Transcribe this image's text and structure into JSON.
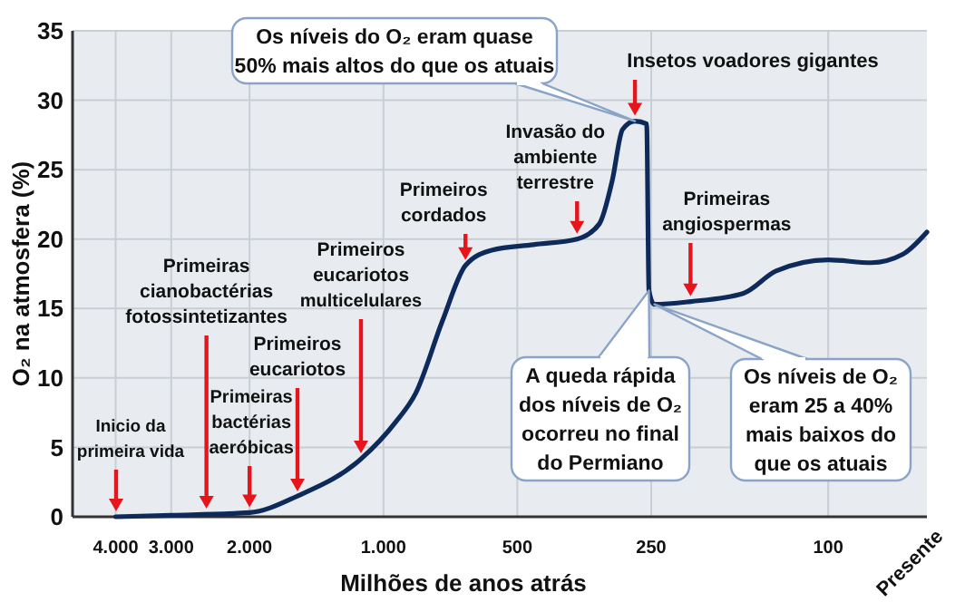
{
  "chart_data": {
    "type": "line",
    "xlabel": "Milhões de anos atrás",
    "ylabel": "O₂ na atmosfera (%)",
    "log": "x",
    "xlim": [
      5000,
      60
    ],
    "xticks": [
      {
        "value": 4000,
        "label": "4.000"
      },
      {
        "value": 3000,
        "label": "3.000"
      },
      {
        "value": 2000,
        "label": "2.000"
      },
      {
        "value": 1000,
        "label": "1.000"
      },
      500,
      250,
      100
    ],
    "ylim": [
      0,
      35
    ],
    "yticks": [
      0,
      5,
      10,
      15,
      20,
      25,
      30,
      35
    ],
    "grid": true,
    "series": [
      {
        "color": "#0e2a5a",
        "x": [
          4000,
          3000,
          2000,
          1560,
          1120,
          940,
          846,
          737,
          654,
          571,
          460,
          367,
          327,
          306,
          290,
          272,
          256,
          253,
          246,
          204,
          155,
          131,
          100,
          80,
          68,
          60
        ],
        "values": [
          0,
          0.1,
          0.3,
          1.5,
          4.2,
          6.8,
          8.9,
          14.1,
          18.1,
          19.2,
          19.6,
          20.0,
          21.1,
          24.2,
          27.9,
          28.5,
          28.3,
          16.3,
          15.3,
          15.5,
          16.1,
          17.7,
          18.5,
          18.3,
          18.9,
          20.5
        ]
      }
    ],
    "annotations": [
      "Inicio da\nprimeira vida",
      {
        "text": "Primeiras\ncianobactérias\nfotossintetizantes",
        "x": 2500,
        "y": 0.2
      },
      {
        "text": "Primeiras\nbactérias\naeróbicas",
        "x": 2000,
        "y": 0.3
      },
      "Primeiros\neucariotos",
      "Primeiros\neucariotos\nmulticelulares",
      {
        "text": "Primeiros\ncordados",
        "x": 654,
        "y": 18.1
      },
      {
        "text": "Invasão do\nambiente\nterrestre",
        "x": 367,
        "y": 20.0
      },
      {
        "text": "Insetos voadores gigantes",
        "x": 272,
        "y": 28.5
      },
      {
        "text": "Primeiras\nangiospermas",
        "x": 204,
        "y": 15.5
      },
      {
        "text": "Os níveis do O₂ eram quase\n50% mais altos do que os atuais",
        "x": 272,
        "y": 28.5
      },
      {
        "text": "A queda rápida\ndos níveis de O₂\nocorreu no final\ndo Permiano",
        "x": 253,
        "y": 16.3
      },
      {
        "text": "Os níveis de O₂\neram 25 a 40%\nmais baixos do\nque os atuais",
        "x": 246,
        "y": 15.3
      },
      "Presente"
    ]
  }
}
